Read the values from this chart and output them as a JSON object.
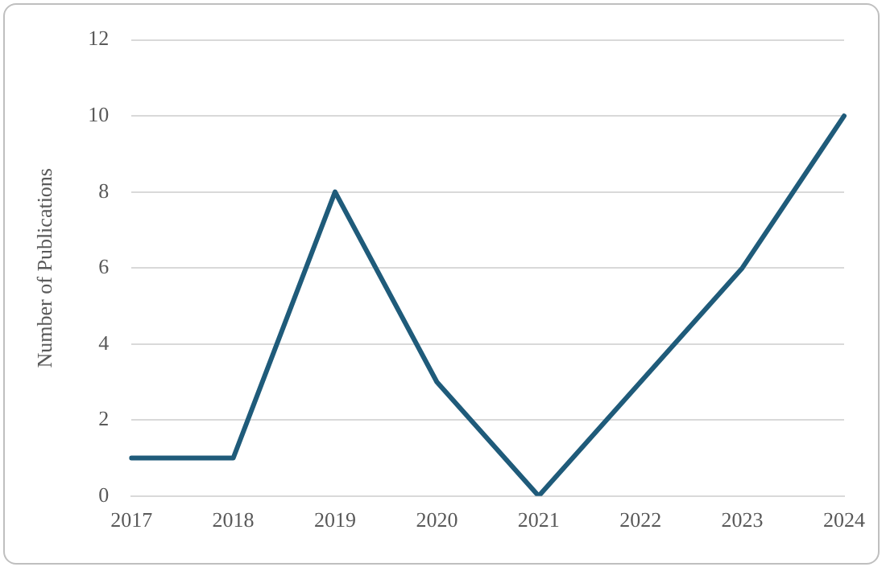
{
  "chart_data": {
    "type": "line",
    "ylabel": "Number of Publications",
    "categories": [
      "2017",
      "2018",
      "2019",
      "2020",
      "2021",
      "2022",
      "2023",
      "2024"
    ],
    "series": [
      {
        "color": "#1f5b7a",
        "values": [
          1,
          1,
          8,
          3,
          0,
          3,
          6,
          10
        ]
      }
    ],
    "ylim": [
      0,
      12
    ],
    "yticks": [
      0,
      2,
      4,
      6,
      8,
      10,
      12
    ],
    "grid": "y",
    "legend": false,
    "marker": "none",
    "line_style": "solid"
  }
}
